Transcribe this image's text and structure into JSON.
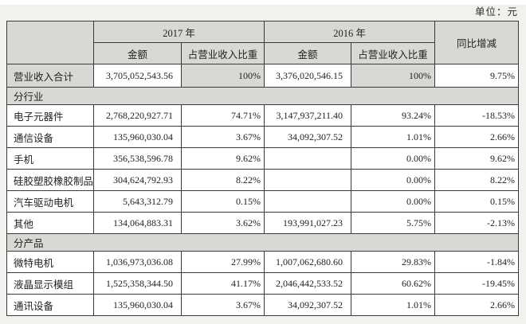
{
  "unit_label": "单位：元",
  "table": {
    "header": {
      "year_2017": "2017 年",
      "year_2016": "2016 年",
      "amount": "金额",
      "ratio": "占营业收入比重",
      "yoy": "同比增减"
    },
    "rows": [
      {
        "type": "total",
        "label": "营业收入合计",
        "a2017": "3,705,052,543.56",
        "r2017": "100%",
        "a2016": "3,376,020,546.15",
        "r2016": "100%",
        "yoy": "9.75%"
      },
      {
        "type": "section",
        "label": "分行业"
      },
      {
        "type": "data",
        "label": "电子元器件",
        "a2017": "2,768,220,927.71",
        "r2017": "74.71%",
        "a2016": "3,147,937,211.40",
        "r2016": "93.24%",
        "yoy": "-18.53%"
      },
      {
        "type": "data",
        "label": "通信设备",
        "a2017": "135,960,030.04",
        "r2017": "3.67%",
        "a2016": "34,092,307.52",
        "r2016": "1.01%",
        "yoy": "2.66%"
      },
      {
        "type": "data",
        "label": "手机",
        "a2017": "356,538,596.78",
        "r2017": "9.62%",
        "a2016": "",
        "r2016": "0.00%",
        "yoy": "9.62%"
      },
      {
        "type": "data",
        "label": "硅胶塑胶橡胶制品",
        "a2017": "304,624,792.93",
        "r2017": "8.22%",
        "a2016": "",
        "r2016": "0.00%",
        "yoy": "8.22%"
      },
      {
        "type": "data",
        "label": "汽车驱动电机",
        "a2017": "5,643,312.79",
        "r2017": "0.15%",
        "a2016": "",
        "r2016": "0.00%",
        "yoy": "0.15%"
      },
      {
        "type": "data",
        "label": "其他",
        "a2017": "134,064,883.31",
        "r2017": "3.62%",
        "a2016": "193,991,027.23",
        "r2016": "5.75%",
        "yoy": "-2.13%"
      },
      {
        "type": "section",
        "label": "分产品"
      },
      {
        "type": "data",
        "label": "微特电机",
        "a2017": "1,036,973,036.08",
        "r2017": "27.99%",
        "a2016": "1,007,062,680.60",
        "r2016": "29.83%",
        "yoy": "-1.84%"
      },
      {
        "type": "data",
        "label": "液晶显示模组",
        "a2017": "1,525,358,344.50",
        "r2017": "41.17%",
        "a2016": "2,046,442,533.52",
        "r2016": "60.62%",
        "yoy": "-19.45%"
      },
      {
        "type": "data",
        "label": "通讯设备",
        "a2017": "135,960,030.04",
        "r2017": "3.67%",
        "a2016": "34,092,307.52",
        "r2016": "1.01%",
        "yoy": "2.66%"
      }
    ]
  },
  "colors": {
    "page_background": "#f2f1ee",
    "shaded_cell": "#d9d8d5",
    "border": "#3a3a3a",
    "text": "#222222"
  }
}
